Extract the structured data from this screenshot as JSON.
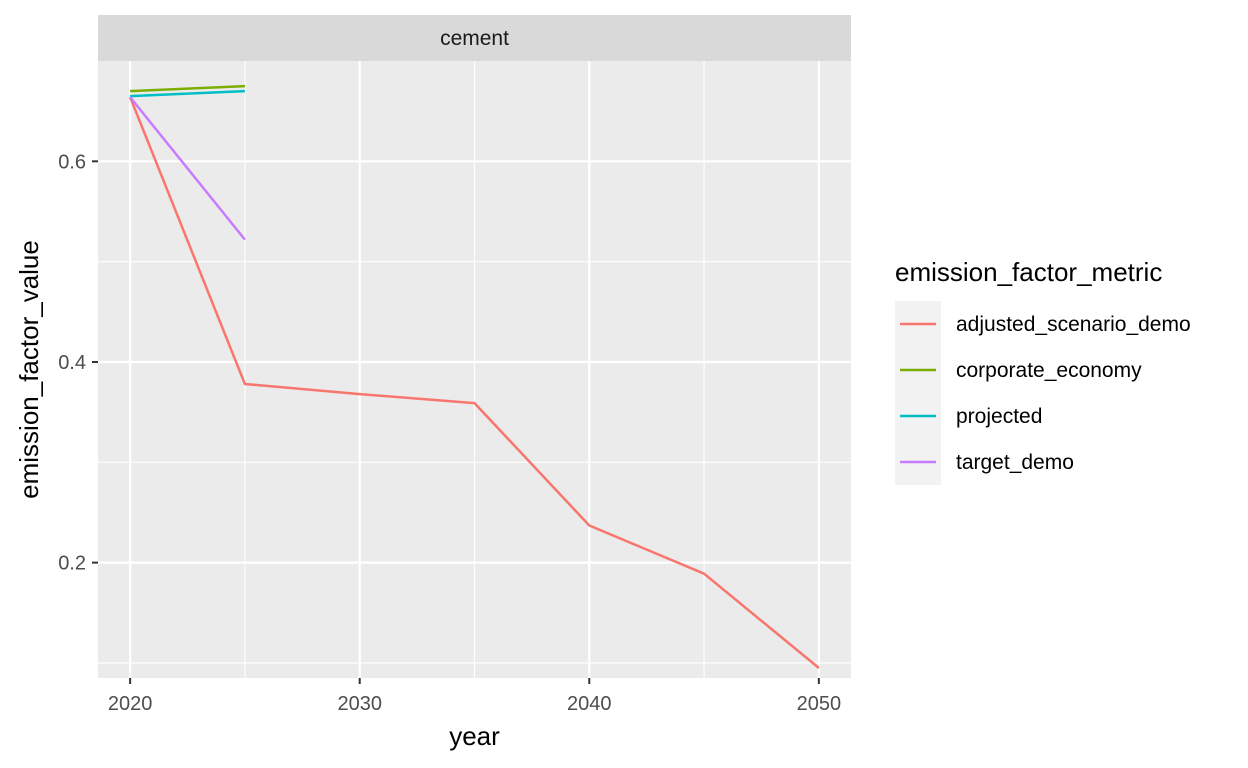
{
  "chart_data": {
    "type": "line",
    "facet_label": "cement",
    "xlabel": "year",
    "ylabel": "emission_factor_value",
    "xlim": [
      2018.6,
      2051.4
    ],
    "ylim": [
      0.085,
      0.7
    ],
    "x_ticks": [
      2020,
      2030,
      2040,
      2050
    ],
    "x_minor": [
      2025,
      2035,
      2045
    ],
    "y_ticks": [
      0.2,
      0.4,
      0.6
    ],
    "y_tick_labels": [
      "0.2",
      "0.4",
      "0.6"
    ],
    "y_minor": [
      0.1,
      0.3,
      0.5
    ],
    "grid": true,
    "legend": {
      "title": "emission_factor_metric",
      "position": "right"
    },
    "series": [
      {
        "name": "adjusted_scenario_demo",
        "color": "#F8766D",
        "x": [
          2020,
          2025,
          2030,
          2035,
          2040,
          2045,
          2050
        ],
        "y": [
          0.664,
          0.378,
          0.368,
          0.359,
          0.237,
          0.189,
          0.095
        ]
      },
      {
        "name": "corporate_economy",
        "color": "#7CAE00",
        "x": [
          2020,
          2025
        ],
        "y": [
          0.67,
          0.675
        ]
      },
      {
        "name": "projected",
        "color": "#00BFC4",
        "x": [
          2020,
          2025
        ],
        "y": [
          0.665,
          0.67
        ]
      },
      {
        "name": "target_demo",
        "color": "#C77CFF",
        "x": [
          2020,
          2025
        ],
        "y": [
          0.664,
          0.522
        ]
      }
    ]
  }
}
